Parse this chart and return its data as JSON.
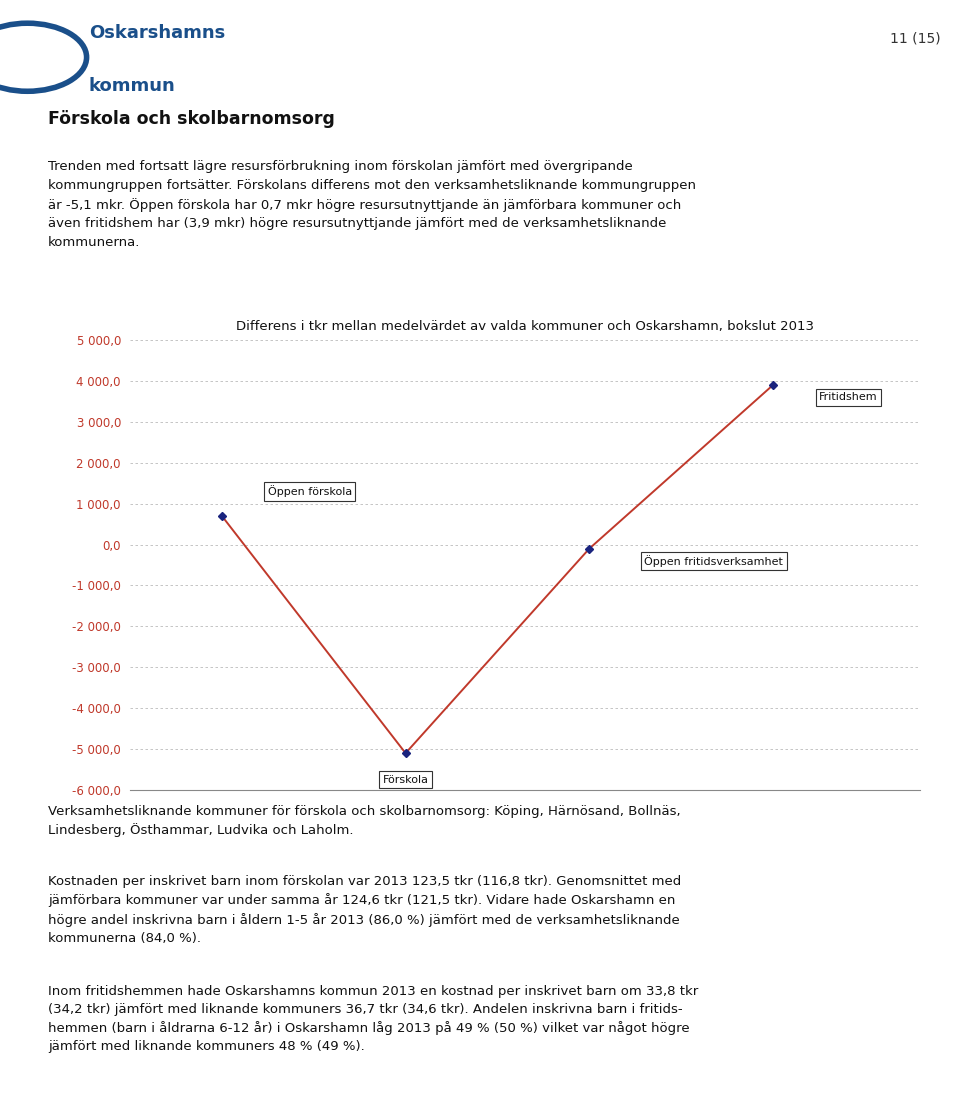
{
  "title": "Differens i tkr mellan medelvärdet av valda kommuner och Oskarshamn, bokslut 2013",
  "x_positions": [
    1,
    2,
    3,
    4
  ],
  "y_values": [
    700,
    -5100,
    -100,
    3900
  ],
  "labels": [
    "Öppen förskola",
    "Förskola",
    "Öppen fritidsverksamhet",
    "Fritidshem"
  ],
  "ylim": [
    -6000,
    5000
  ],
  "yticks": [
    -6000,
    -5000,
    -4000,
    -3000,
    -2000,
    -1000,
    0,
    1000,
    2000,
    3000,
    4000,
    5000
  ],
  "ytick_labels": [
    "-6 000,0",
    "-5 000,0",
    "-4 000,0",
    "-3 000,0",
    "-2 000,0",
    "-1 000,0",
    "0,0",
    "1 000,0",
    "2 000,0",
    "3 000,0",
    "4 000,0",
    "5 000,0"
  ],
  "line_color": "#c0392b",
  "marker_color": "#1a237e",
  "background_color": "#ffffff",
  "title_fontsize": 9.5,
  "tick_fontsize": 8.5,
  "label_fontsize": 8,
  "header_text": "Förskola och skolbarnomsorg",
  "body_text": "Trenden med fortsatt lägre resursförbrukning inom förskolan jämfört med övergripande\nkommungruppen fortsätter. Förskolans differens mot den verksamhetsliknande kommungruppen\när -5,1 mkr. Öppen förskola har 0,7 mkr högre resursutnyttjande än jämförbara kommuner och\näven fritidshem har (3,9 mkr) högre resursutnyttjande jämfört med de verksamhetsliknande\nkommunerna.",
  "footer_block1": "Verksamhetsliknande kommuner för förskola och skolbarnomsorg: Köping, Härnösand, Bollnäs,\nLindesberg, Östhammar, Ludvika och Laholm.",
  "footer_block2": "Kostnaden per inskrivet barn inom förskolan var 2013 123,5 tkr (116,8 tkr). Genomsnittet med\njämförbara kommuner var under samma år 124,6 tkr (121,5 tkr). Vidare hade Oskarshamn en\nhögre andel inskrivna barn i åldern 1-5 år 2013 (86,0 %) jämfört med de verksamhetsliknande\nkommunerna (84,0 %).",
  "footer_block3": "Inom fritidshemmen hade Oskarshamns kommun 2013 en kostnad per inskrivet barn om 33,8 tkr\n(34,2 tkr) jämfört med liknande kommuners 36,7 tkr (34,6 tkr). Andelen inskrivna barn i fritids-\nhemmen (barn i åldrarna 6-12 år) i Oskarshamn låg 2013 på 49 % (50 %) vilket var något högre\njämfört med liknande kommuners 48 % (49 %).",
  "page_num": "11 (15)",
  "logo_text1": "Oskarshamns",
  "logo_text2": "kommun",
  "logo_color": "#1a4f8a"
}
